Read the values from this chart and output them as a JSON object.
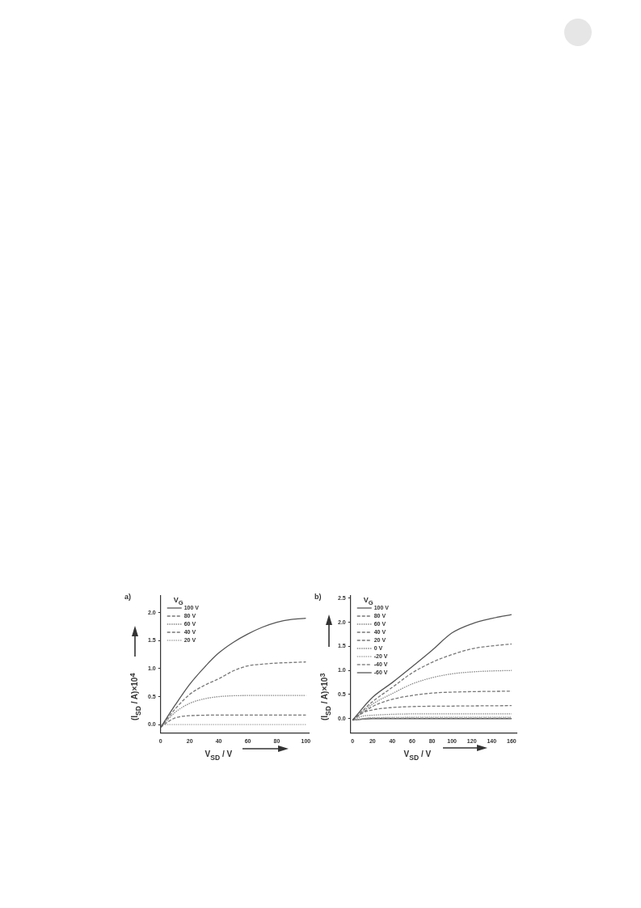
{
  "chart_data": [
    {
      "type": "line",
      "title": "a)",
      "xlabel": "V$_{SD}$ / V",
      "ylabel": "(I$_{SD}$ / A)×10$^{4}$",
      "legend_title": "V$_{G}$",
      "legend": "top left",
      "marker": "none",
      "grid": false,
      "xlim": [
        0,
        102
      ],
      "xticks": [
        0,
        20,
        40,
        60,
        80,
        100
      ],
      "ylim": [
        -0.15,
        2.3
      ],
      "yticks": [
        {
          "value": 0,
          "label": "0.0"
        },
        0.5,
        {
          "value": 1,
          "label": "1.0"
        },
        1.5,
        {
          "value": 2,
          "label": "2.0"
        }
      ],
      "series": [
        {
          "name": "100 V",
          "color": "#555555",
          "line_style": "solid",
          "x": [
            0,
            10,
            20,
            30,
            40,
            50,
            60,
            70,
            80,
            90,
            100
          ],
          "values": [
            -0.05,
            0.35,
            0.72,
            1.02,
            1.28,
            1.47,
            1.62,
            1.74,
            1.83,
            1.88,
            1.9
          ]
        },
        {
          "name": "80 V",
          "color": "#777777",
          "line_style": "dashed",
          "x": [
            0,
            10,
            20,
            30,
            40,
            50,
            60,
            70,
            80,
            90,
            100
          ],
          "values": [
            -0.05,
            0.28,
            0.54,
            0.7,
            0.82,
            0.96,
            1.05,
            1.08,
            1.1,
            1.11,
            1.12
          ]
        },
        {
          "name": "60 V",
          "color": "#888888",
          "line_style": "dotted",
          "x": [
            0,
            10,
            20,
            30,
            40,
            60,
            80,
            100
          ],
          "values": [
            -0.05,
            0.22,
            0.38,
            0.46,
            0.5,
            0.52,
            0.52,
            0.52
          ]
        },
        {
          "name": "40 V",
          "color": "#777777",
          "line_style": "dashed",
          "x": [
            0,
            5,
            10,
            20,
            40,
            60,
            80,
            100
          ],
          "values": [
            -0.05,
            0.05,
            0.12,
            0.16,
            0.17,
            0.17,
            0.17,
            0.17
          ]
        },
        {
          "name": "20 V",
          "color": "#aaaaaa",
          "line_style": "dotted",
          "x": [
            0,
            50,
            100
          ],
          "values": [
            0,
            0,
            0
          ]
        }
      ]
    },
    {
      "type": "line",
      "title": "b)",
      "xlabel": "V$_{SD}$ / V",
      "ylabel": "(I$_{SD}$ / A)×10$^{3}$",
      "legend_title": "V$_{G}$",
      "legend": "top left",
      "marker": "none",
      "grid": false,
      "xlim": [
        -2,
        165
      ],
      "xticks": [
        0,
        20,
        40,
        60,
        80,
        100,
        120,
        140,
        160
      ],
      "ylim": [
        -0.3,
        2.55
      ],
      "yticks": [
        {
          "value": 0,
          "label": "0.0"
        },
        0.5,
        {
          "value": 1,
          "label": "1.0"
        },
        1.5,
        {
          "value": 2,
          "label": "2.0"
        },
        2.5
      ],
      "series": [
        {
          "name": "100 V",
          "color": "#555555",
          "line_style": "solid",
          "x": [
            0,
            20,
            40,
            60,
            80,
            100,
            120,
            140,
            160
          ],
          "values": [
            -0.03,
            0.44,
            0.75,
            1.08,
            1.42,
            1.78,
            1.97,
            2.08,
            2.16
          ]
        },
        {
          "name": "80 V",
          "color": "#777777",
          "line_style": "dashed",
          "x": [
            0,
            20,
            40,
            60,
            80,
            100,
            120,
            140,
            160
          ],
          "values": [
            -0.03,
            0.35,
            0.65,
            0.95,
            1.17,
            1.33,
            1.45,
            1.51,
            1.55
          ]
        },
        {
          "name": "60 V",
          "color": "#888888",
          "line_style": "dotted",
          "x": [
            0,
            20,
            40,
            60,
            80,
            100,
            120,
            140,
            160
          ],
          "values": [
            -0.03,
            0.3,
            0.52,
            0.72,
            0.85,
            0.93,
            0.97,
            0.99,
            1.0
          ]
        },
        {
          "name": "40 V",
          "color": "#777777",
          "line_style": "dashed",
          "x": [
            0,
            20,
            40,
            60,
            80,
            100,
            120,
            160
          ],
          "values": [
            -0.03,
            0.25,
            0.4,
            0.48,
            0.53,
            0.55,
            0.56,
            0.57
          ]
        },
        {
          "name": "20 V",
          "color": "#777777",
          "line_style": "dashed",
          "x": [
            0,
            10,
            20,
            40,
            60,
            100,
            160
          ],
          "values": [
            -0.03,
            0.12,
            0.18,
            0.23,
            0.25,
            0.26,
            0.27
          ]
        },
        {
          "name": "0 V",
          "color": "#888888",
          "line_style": "dotted",
          "x": [
            0,
            10,
            20,
            40,
            80,
            160
          ],
          "values": [
            -0.03,
            0.05,
            0.07,
            0.09,
            0.1,
            0.1
          ]
        },
        {
          "name": "-20 V",
          "color": "#aaaaaa",
          "line_style": "dotted",
          "x": [
            0,
            20,
            80,
            160
          ],
          "values": [
            -0.03,
            0.02,
            0.03,
            0.03
          ]
        },
        {
          "name": "-40 V",
          "color": "#888888",
          "line_style": "dashed",
          "x": [
            0,
            20,
            160
          ],
          "values": [
            -0.03,
            0.01,
            0.01
          ]
        },
        {
          "name": "-60 V",
          "color": "#555555",
          "line_style": "solid",
          "x": [
            0,
            20,
            160
          ],
          "values": [
            -0.03,
            0,
            0
          ]
        }
      ]
    }
  ]
}
